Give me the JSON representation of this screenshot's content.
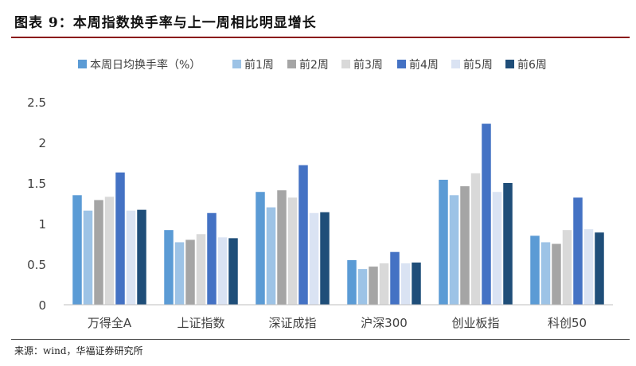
{
  "figure": {
    "title": "图表 9：本周指数换手率与上一周相比明显增长",
    "source": "来源：wind，华福证券研究所"
  },
  "chart_data": {
    "type": "bar",
    "categories": [
      "万得全A",
      "上证指数",
      "深证成指",
      "沪深300",
      "创业板指",
      "科创50"
    ],
    "series": [
      {
        "name": "本周日均换手率（%）",
        "color": "#5B9BD5",
        "values": [
          1.35,
          0.92,
          1.39,
          0.55,
          1.54,
          0.85
        ]
      },
      {
        "name": "前1周",
        "color": "#9DC3E6",
        "values": [
          1.16,
          0.77,
          1.2,
          0.44,
          1.35,
          0.77
        ]
      },
      {
        "name": "前2周",
        "color": "#A5A5A5",
        "values": [
          1.29,
          0.8,
          1.41,
          0.47,
          1.46,
          0.75
        ]
      },
      {
        "name": "前3周",
        "color": "#D9D9D9",
        "values": [
          1.33,
          0.87,
          1.32,
          0.51,
          1.62,
          0.92
        ]
      },
      {
        "name": "前4周",
        "color": "#4472C4",
        "values": [
          1.63,
          1.13,
          1.72,
          0.65,
          2.23,
          1.32
        ]
      },
      {
        "name": "前5周",
        "color": "#DAE3F3",
        "values": [
          1.16,
          0.83,
          1.13,
          0.51,
          1.39,
          0.93
        ]
      },
      {
        "name": "前6周",
        "color": "#1F4E79",
        "values": [
          1.17,
          0.82,
          1.14,
          0.52,
          1.5,
          0.89
        ]
      }
    ],
    "y_ticks": [
      "0",
      "0.5",
      "1",
      "1.5",
      "2",
      "2.5"
    ],
    "ylim": [
      0,
      2.5
    ],
    "grid": false,
    "legend_position": "top"
  }
}
